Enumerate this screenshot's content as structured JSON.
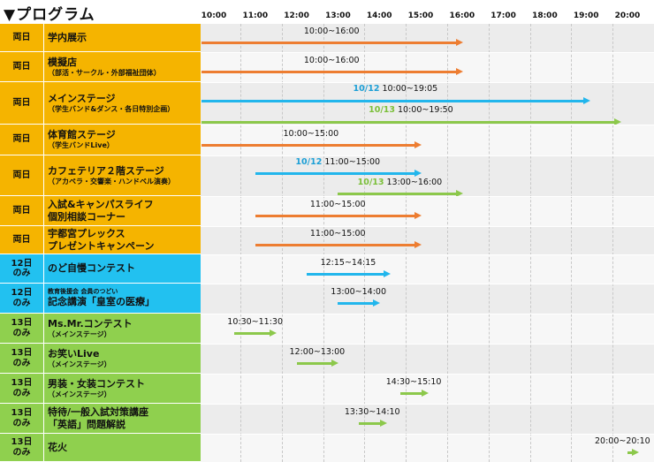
{
  "title": "▼プログラム",
  "hours": [
    "10:00",
    "11:00",
    "12:00",
    "13:00",
    "14:00",
    "15:00",
    "16:00",
    "17:00",
    "18:00",
    "19:00",
    "20:00"
  ],
  "colors": {
    "both_days": "#f5b400",
    "day12": "#22c1f0",
    "day13": "#8fd04e",
    "arrow_orange": "#ed7d31",
    "arrow_blue": "#22b6ec",
    "arrow_green": "#8cc84b",
    "label_blue": "#1c9fd6",
    "label_green": "#7bbf3a",
    "row_gray": "#ececec",
    "row_white": "#f7f7f7"
  },
  "rows": [
    {
      "day": "両日",
      "name": "学内展示",
      "sub": "",
      "pre": "",
      "events": [
        {
          "day_label": "",
          "time": "10:00~16:00",
          "start": "10:00",
          "end": "16:00",
          "color": "orange"
        }
      ]
    },
    {
      "day": "両日",
      "name": "模擬店",
      "sub": "（部活・サークル・外部福祉団体）",
      "pre": "",
      "events": [
        {
          "day_label": "",
          "time": "10:00~16:00",
          "start": "10:00",
          "end": "16:00",
          "color": "orange"
        }
      ]
    },
    {
      "day": "両日",
      "name": "メインステージ",
      "sub": "（学生バンド&ダンス・各日特別企画）",
      "pre": "",
      "events": [
        {
          "day_label": "10/12",
          "time": "10:00~19:05",
          "start": "10:00",
          "end": "19:05",
          "color": "blue"
        },
        {
          "day_label": "10/13",
          "time": "10:00~19:50",
          "start": "10:00",
          "end": "19:50",
          "color": "green"
        }
      ]
    },
    {
      "day": "両日",
      "name": "体育館ステージ",
      "sub": "（学生バンドLive）",
      "pre": "",
      "events": [
        {
          "day_label": "",
          "time": "10:00~15:00",
          "start": "10:00",
          "end": "15:00",
          "color": "orange"
        }
      ]
    },
    {
      "day": "両日",
      "name": "カフェテリア２階ステージ",
      "sub": "（アカペラ・交響楽・ハンドベル演奏）",
      "pre": "",
      "events": [
        {
          "day_label": "10/12",
          "time": "11:00~15:00",
          "start": "11:00",
          "end": "15:00",
          "color": "blue"
        },
        {
          "day_label": "10/13",
          "time": "13:00~16:00",
          "start": "13:00",
          "end": "16:00",
          "color": "green"
        }
      ]
    },
    {
      "day": "両日",
      "name": "入試&キャンパスライフ\n個別相談コーナー",
      "sub": "",
      "pre": "",
      "events": [
        {
          "day_label": "",
          "time": "11:00~15:00",
          "start": "11:00",
          "end": "15:00",
          "color": "orange"
        }
      ]
    },
    {
      "day": "両日",
      "name": "宇都宮プレックス\nプレゼントキャンペーン",
      "sub": "",
      "pre": "",
      "events": [
        {
          "day_label": "",
          "time": "11:00~15:00",
          "start": "11:00",
          "end": "15:00",
          "color": "orange"
        }
      ]
    },
    {
      "day": "12日\nのみ",
      "name": "のど自慢コンテスト",
      "sub": "",
      "pre": "",
      "events": [
        {
          "day_label": "",
          "time": "12:15~14:15",
          "start": "12:15",
          "end": "14:15",
          "color": "blue"
        }
      ]
    },
    {
      "day": "12日\nのみ",
      "name": "記念講演「皇室の医療」",
      "sub": "",
      "pre": "教育後援会 会員のつどい",
      "events": [
        {
          "day_label": "",
          "time": "13:00~14:00",
          "start": "13:00",
          "end": "14:00",
          "color": "blue"
        }
      ]
    },
    {
      "day": "13日\nのみ",
      "name": "Ms.Mr.コンテスト",
      "sub": "（メインステージ）",
      "pre": "",
      "events": [
        {
          "day_label": "",
          "time": "10:30~11:30",
          "start": "10:30",
          "end": "11:30",
          "color": "green"
        }
      ]
    },
    {
      "day": "13日\nのみ",
      "name": "お笑いLive",
      "sub": "（メインステージ）",
      "pre": "",
      "events": [
        {
          "day_label": "",
          "time": "12:00~13:00",
          "start": "12:00",
          "end": "13:00",
          "color": "green"
        }
      ]
    },
    {
      "day": "13日\nのみ",
      "name": "男装・女装コンテスト",
      "sub": "（メインステージ）",
      "pre": "",
      "events": [
        {
          "day_label": "",
          "time": "14:30~15:10",
          "start": "14:30",
          "end": "15:10",
          "color": "green"
        }
      ]
    },
    {
      "day": "13日\nのみ",
      "name": "特待/一般入試対策講座\n「英語」問題解説",
      "sub": "",
      "pre": "",
      "events": [
        {
          "day_label": "",
          "time": "13:30~14:10",
          "start": "13:30",
          "end": "14:10",
          "color": "green"
        }
      ]
    },
    {
      "day": "13日\nのみ",
      "name": "花火",
      "sub": "",
      "pre": "",
      "events": [
        {
          "day_label": "",
          "time": "20:00~20:10",
          "start": "20:00",
          "end": "20:10",
          "color": "green"
        }
      ]
    }
  ]
}
